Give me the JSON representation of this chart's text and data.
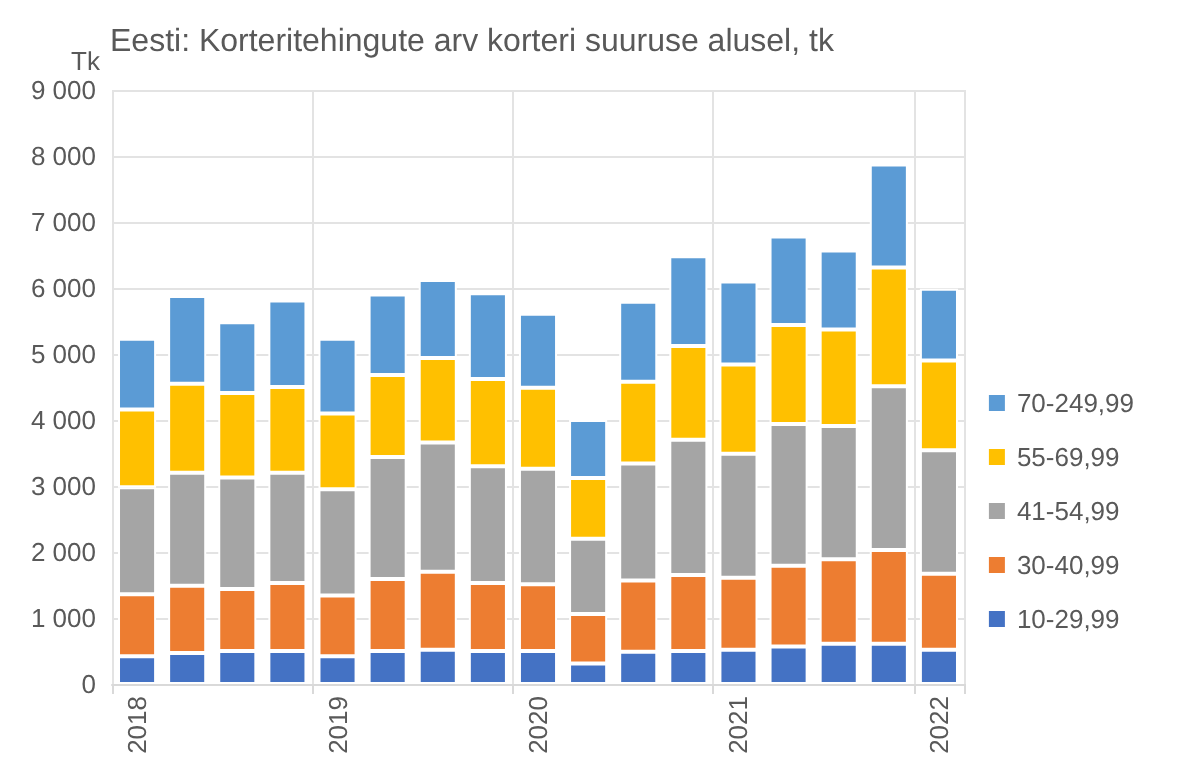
{
  "chart_data": {
    "type": "bar",
    "title": "Eesti: Korteritehingute arv korteri suuruse alusel, tk",
    "ylabel": "Tk",
    "categories": [
      "2018",
      null,
      null,
      null,
      "2019",
      null,
      null,
      null,
      "2020",
      null,
      null,
      null,
      "2021",
      null,
      null,
      null,
      "2022"
    ],
    "stacked": true,
    "legend": "right",
    "grid": true,
    "ylim": [
      0,
      9000
    ],
    "yticks": [
      0,
      {
        "value": 1000,
        "label": "1 000"
      },
      {
        "value": 2000,
        "label": "2 000"
      },
      {
        "value": 3000,
        "label": "3 000"
      },
      {
        "value": 4000,
        "label": "4 000"
      },
      {
        "value": 5000,
        "label": "5 000"
      },
      {
        "value": 6000,
        "label": "6 000"
      },
      {
        "value": 7000,
        "label": "7 000"
      },
      {
        "value": 8000,
        "label": "8 000"
      },
      {
        "value": 9000,
        "label": "9 000"
      }
    ],
    "series": [
      {
        "name": "10-29,99",
        "color": "#4472c4",
        "values": [
          420,
          470,
          500,
          500,
          420,
          500,
          520,
          500,
          500,
          310,
          490,
          500,
          520,
          570,
          610,
          610,
          520
        ]
      },
      {
        "name": "30-40,99",
        "color": "#ed7d31",
        "values": [
          940,
          1020,
          940,
          1030,
          920,
          1090,
          1180,
          1030,
          1010,
          750,
          1080,
          1150,
          1090,
          1220,
          1280,
          1420,
          1150
        ]
      },
      {
        "name": "41-54,99",
        "color": "#a5a5a5",
        "values": [
          1620,
          1710,
          1690,
          1670,
          1610,
          1850,
          1960,
          1770,
          1750,
          1140,
          1770,
          2050,
          1880,
          2150,
          2020,
          2480,
          1870
        ]
      },
      {
        "name": "55-69,99",
        "color": "#ffc000",
        "values": [
          1180,
          1350,
          1280,
          1300,
          1150,
          1240,
          1280,
          1320,
          1230,
          920,
          1240,
          1420,
          1350,
          1500,
          1460,
          1800,
          1360
        ]
      },
      {
        "name": "70-249,99",
        "color": "#5b9bd5",
        "values": [
          1070,
          1330,
          1070,
          1310,
          1130,
          1220,
          1180,
          1300,
          1120,
          880,
          1210,
          1360,
          1260,
          1340,
          1200,
          1560,
          1090
        ]
      }
    ]
  }
}
